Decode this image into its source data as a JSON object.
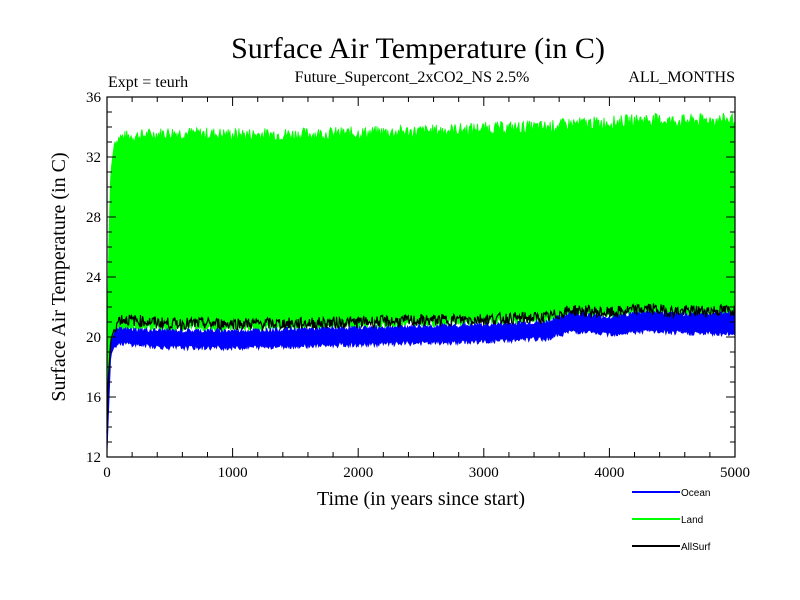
{
  "chart_data": {
    "type": "line",
    "title": "Surface Air Temperature (in C)",
    "subtitle_left": "Expt = teurh",
    "subtitle_center": "Future_Supercont_2xCO2_NS 2.5%",
    "subtitle_right": "ALL_MONTHS",
    "xlabel": "Time (in years since start)",
    "ylabel": "Surface Air Temperature (in C)",
    "xlim": [
      0,
      5000
    ],
    "ylim": [
      12,
      36
    ],
    "x_ticks": [
      0,
      1000,
      2000,
      3000,
      4000,
      5000
    ],
    "y_ticks": [
      12,
      16,
      20,
      24,
      28,
      32,
      36
    ],
    "series": [
      {
        "name": "Land",
        "color": "#00ff00",
        "x": [
          0,
          10,
          30,
          60,
          100,
          500,
          1000,
          1500,
          2000,
          2500,
          3000,
          3500,
          3700,
          4000,
          4300,
          4500,
          5000
        ],
        "upper": [
          16,
          25,
          31,
          33,
          33.3,
          33.6,
          33.5,
          33.5,
          33.6,
          33.7,
          33.9,
          34.0,
          34.2,
          34.3,
          34.5,
          34.4,
          34.5
        ],
        "lower": [
          12.5,
          16,
          19.5,
          20.3,
          20.6,
          20.6,
          20.6,
          20.7,
          20.8,
          20.9,
          21.0,
          21.2,
          21.5,
          21.5,
          21.7,
          21.6,
          21.7
        ]
      },
      {
        "name": "Ocean",
        "color": "#0000ff",
        "x": [
          0,
          10,
          30,
          60,
          100,
          500,
          1000,
          1500,
          2000,
          2500,
          3000,
          3500,
          3700,
          4000,
          4300,
          4500,
          5000
        ],
        "upper": [
          13.5,
          17,
          19.6,
          20.3,
          20.5,
          20.4,
          20.4,
          20.5,
          20.6,
          20.7,
          20.8,
          21.0,
          21.6,
          21.3,
          21.7,
          21.5,
          21.6
        ],
        "lower": [
          12.2,
          14.5,
          18.8,
          19.4,
          19.6,
          19.3,
          19.3,
          19.4,
          19.5,
          19.6,
          19.7,
          19.9,
          20.4,
          20.2,
          20.4,
          20.3,
          20.2
        ]
      },
      {
        "name": "AllSurf",
        "color": "#000000",
        "x": [
          0,
          10,
          30,
          60,
          100,
          500,
          1000,
          1500,
          2000,
          2500,
          3000,
          3500,
          3700,
          4000,
          4300,
          4500,
          5000
        ],
        "upper": [
          13.6,
          17.2,
          19.8,
          20.6,
          21.2,
          20.9,
          20.9,
          20.9,
          21.0,
          21.1,
          21.2,
          21.3,
          21.8,
          21.6,
          21.9,
          21.7,
          21.8
        ],
        "lower": [
          13.6,
          17.2,
          19.8,
          20.6,
          21.2,
          20.9,
          20.9,
          20.9,
          21.0,
          21.1,
          21.2,
          21.3,
          21.8,
          21.6,
          21.9,
          21.7,
          21.8
        ]
      }
    ],
    "legend_position": "bottom-right",
    "grid": false
  }
}
